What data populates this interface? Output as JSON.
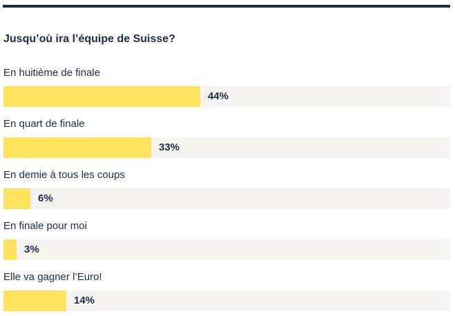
{
  "poll": {
    "question": "Jusqu’où ira l’équipe de Suisse?",
    "colors": {
      "fill": "#ffe35f",
      "track": "#f5f4f0",
      "text": "#1f2a44"
    },
    "options": [
      {
        "label": "En huitième de finale",
        "percent": 44,
        "value_label": "44%"
      },
      {
        "label": "En quart de finale",
        "percent": 33,
        "value_label": "33%"
      },
      {
        "label": "En demie à tous les coups",
        "percent": 6,
        "value_label": "6%"
      },
      {
        "label": "En finale pour moi",
        "percent": 3,
        "value_label": "3%"
      },
      {
        "label": "Elle va gagner l’Euro!",
        "percent": 14,
        "value_label": "14%"
      }
    ]
  }
}
